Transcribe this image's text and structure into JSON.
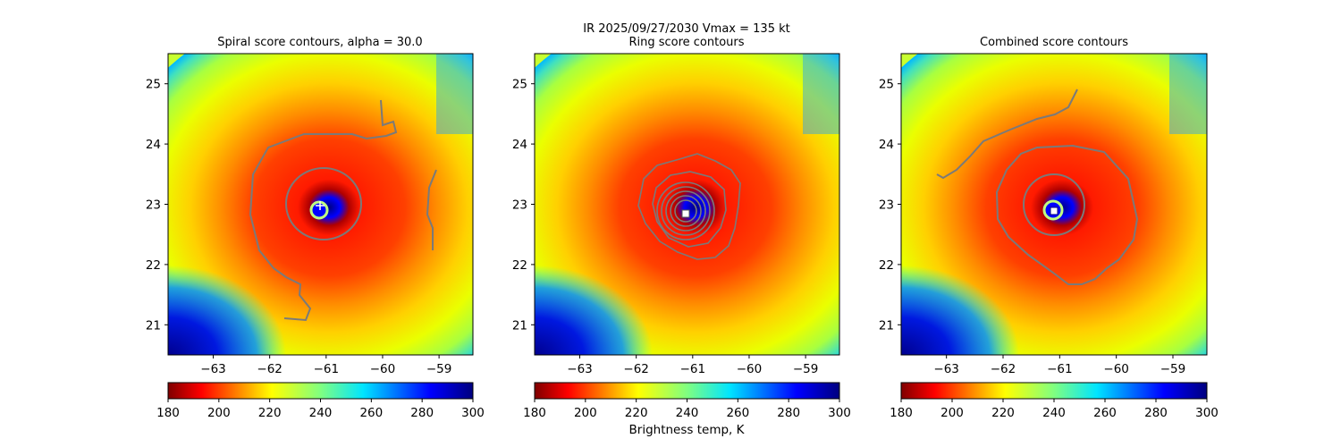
{
  "figure": {
    "suptitle": "IR  2025/09/27/2030    Vmax = 135 kt",
    "colorbar_label": "Brightness temp, K"
  },
  "chart_data": [
    {
      "type": "heatmap",
      "title": "Spiral score contours, alpha = 30.0",
      "xlim": [
        -63.8,
        -58.4
      ],
      "ylim": [
        20.5,
        25.5
      ],
      "xticks": [
        -63,
        -62,
        -61,
        -60,
        -59
      ],
      "yticks": [
        21,
        22,
        23,
        24,
        25
      ],
      "center": {
        "lon": -61.0,
        "lat": 22.9
      },
      "marker": "+",
      "colorbar": {
        "cmap": "jet_r",
        "range": [
          180,
          300
        ],
        "ticks": [
          180,
          200,
          220,
          240,
          260,
          280,
          300
        ],
        "label": ""
      }
    },
    {
      "type": "heatmap",
      "title": "Ring score contours",
      "xlim": [
        -63.8,
        -58.4
      ],
      "ylim": [
        20.5,
        25.5
      ],
      "xticks": [
        -63,
        -62,
        -61,
        -60,
        -59
      ],
      "yticks": [
        21,
        22,
        23,
        24,
        25
      ],
      "center": {
        "lon": -61.0,
        "lat": 22.9
      },
      "marker": "square",
      "colorbar": {
        "cmap": "jet_r",
        "range": [
          180,
          300
        ],
        "ticks": [
          180,
          200,
          220,
          240,
          260,
          280,
          300
        ],
        "label": "Brightness temp, K"
      }
    },
    {
      "type": "heatmap",
      "title": "Combined score contours",
      "xlim": [
        -63.8,
        -58.4
      ],
      "ylim": [
        20.5,
        25.5
      ],
      "xticks": [
        -63,
        -62,
        -61,
        -60,
        -59
      ],
      "yticks": [
        21,
        22,
        23,
        24,
        25
      ],
      "center": {
        "lon": -61.0,
        "lat": 22.9
      },
      "marker": "square",
      "colorbar": {
        "cmap": "jet_r",
        "range": [
          180,
          300
        ],
        "ticks": [
          180,
          200,
          220,
          240,
          260,
          280,
          300
        ],
        "label": ""
      }
    }
  ]
}
